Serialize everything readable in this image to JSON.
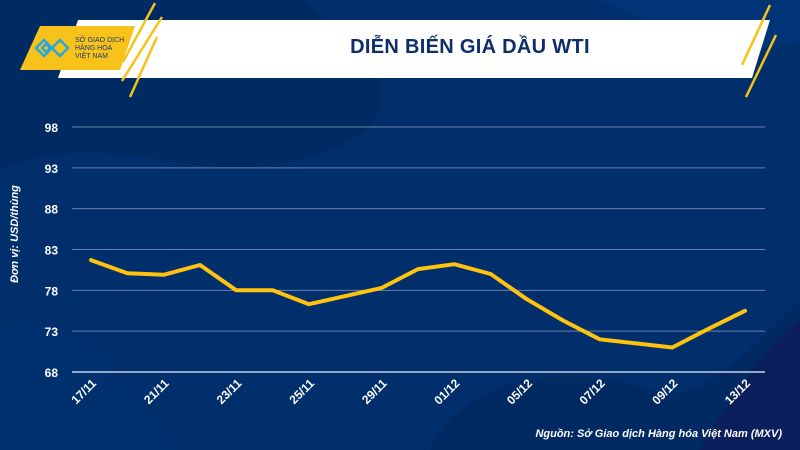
{
  "header": {
    "title": "DIỄN BIẾN GIÁ DẦU WTI",
    "logo_text": [
      "SỞ GIAO DỊCH",
      "HÀNG HÓA",
      "VIỆT NAM"
    ]
  },
  "footer": {
    "source": "Nguồn: Sở Giao dịch Hàng hóa Việt Nam (MXV)"
  },
  "colors": {
    "background": "#002f6c",
    "line": "#ffc20e",
    "accent": "#f7c21a"
  },
  "chart_data": {
    "type": "line",
    "title": "DIỄN BIẾN GIÁ DẦU WTI",
    "ylabel": "Đơn vị: USD/thùng",
    "xlabel": "",
    "ylim": [
      68,
      98
    ],
    "yticks": [
      68,
      73,
      78,
      83,
      88,
      93,
      98
    ],
    "x_tick_labels": [
      "17/11",
      "21/11",
      "23/11",
      "25/11",
      "29/11",
      "01/12",
      "05/12",
      "07/12",
      "09/12",
      "13/12"
    ],
    "grid": true,
    "series": [
      {
        "name": "WTI",
        "values": [
          81.7,
          80.1,
          79.9,
          81.1,
          78.0,
          78.0,
          76.3,
          77.3,
          78.3,
          80.6,
          81.2,
          80.0,
          76.9,
          74.3,
          72.0,
          71.5,
          71.0,
          73.3,
          75.5
        ]
      }
    ]
  }
}
